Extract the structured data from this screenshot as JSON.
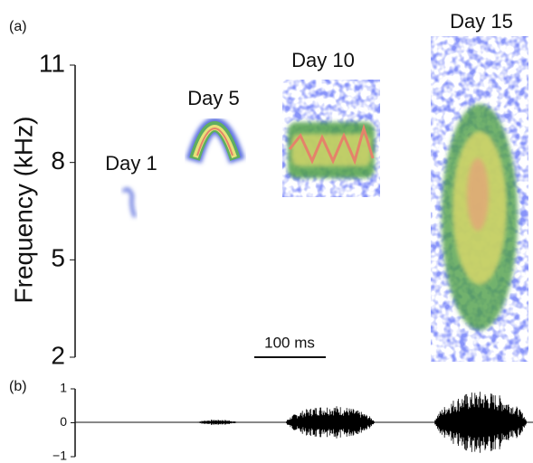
{
  "chart_data": [
    {
      "type": "spectrogram",
      "panel_label": "(a)",
      "ylabel": "Frequency (kHz)",
      "ylim": [
        2,
        11
      ],
      "yticks": [
        2,
        5,
        8,
        11
      ],
      "annotations": [
        "Day 1",
        "Day 5",
        "Day 10",
        "Day 15"
      ],
      "scale_bar": "100 ms"
    },
    {
      "type": "waveform",
      "panel_label": "(b)",
      "ylim": [
        -1,
        1
      ],
      "yticks": [
        {
          "value": -1,
          "label": "−1"
        },
        0,
        1
      ]
    }
  ]
}
